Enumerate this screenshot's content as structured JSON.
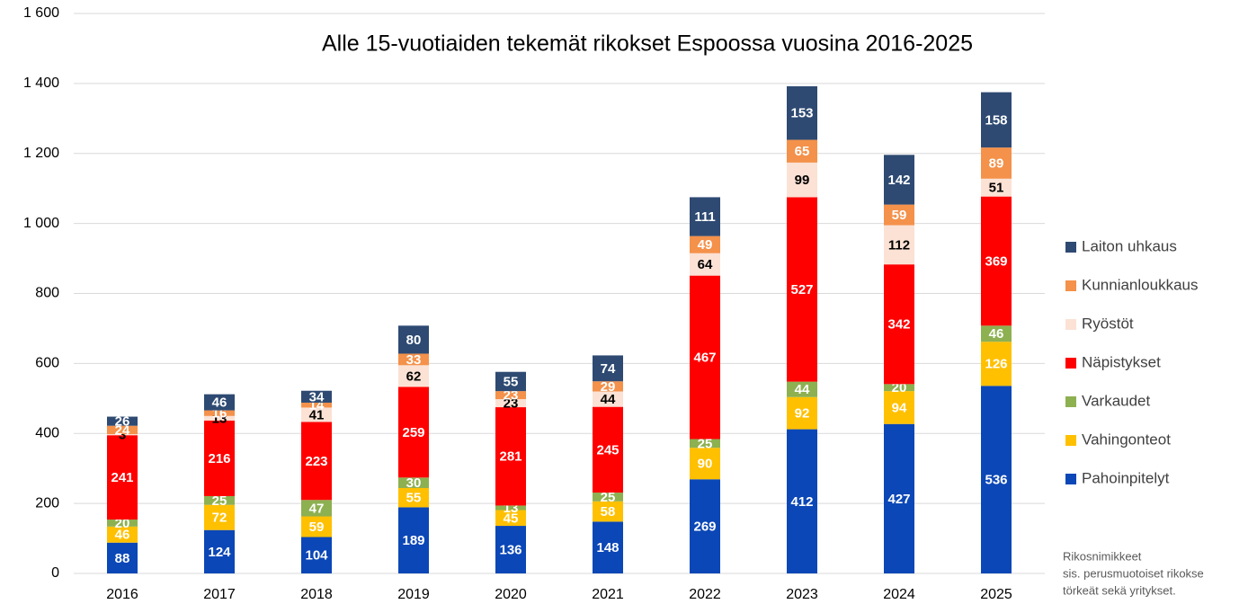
{
  "chart_data": {
    "type": "stacked_bar",
    "title": "Alle 15-vuotiaiden tekemät rikokset Espoossa vuosina 2016-2025",
    "categories": [
      "2016",
      "2017",
      "2018",
      "2019",
      "2020",
      "2021",
      "2022",
      "2023",
      "2024",
      "2025"
    ],
    "series": [
      {
        "name": "Pahoinpitelyt",
        "color": "#0b47b6",
        "label_color": "#ffffff",
        "values": [
          88,
          124,
          104,
          189,
          136,
          148,
          269,
          412,
          427,
          536
        ]
      },
      {
        "name": "Vahingonteot",
        "color": "#ffc000",
        "label_color": "#ffffff",
        "values": [
          46,
          72,
          59,
          55,
          45,
          58,
          90,
          92,
          94,
          126
        ]
      },
      {
        "name": "Varkaudet",
        "color": "#8db051",
        "label_color": "#ffffff",
        "values": [
          20,
          25,
          47,
          30,
          13,
          25,
          25,
          44,
          20,
          46
        ]
      },
      {
        "name": "Näpistykset",
        "color": "#ff0000",
        "label_color": "#ffffff",
        "values": [
          241,
          216,
          223,
          259,
          281,
          245,
          467,
          527,
          342,
          369
        ]
      },
      {
        "name": "Ryöstöt",
        "color": "#fbe2d5",
        "label_color": "#000000",
        "values": [
          3,
          13,
          41,
          62,
          23,
          44,
          64,
          99,
          112,
          51
        ]
      },
      {
        "name": "Kunnianloukkaus",
        "color": "#f4914a",
        "label_color": "#ffffff",
        "values": [
          24,
          16,
          14,
          33,
          23,
          29,
          49,
          65,
          59,
          89
        ]
      },
      {
        "name": "Laiton uhkaus",
        "color": "#2e4a72",
        "label_color": "#ffffff",
        "values": [
          26,
          46,
          34,
          80,
          55,
          74,
          111,
          153,
          142,
          158
        ]
      }
    ],
    "ylim": [
      0,
      1600
    ],
    "yticks": [
      0,
      200,
      400,
      600,
      800,
      {
        "value": 1000,
        "label": "1 000"
      },
      {
        "value": 1200,
        "label": "1 200"
      },
      {
        "value": 1400,
        "label": "1 400"
      },
      {
        "value": 1600,
        "label": "1 600"
      }
    ],
    "grid": true,
    "legend": "right",
    "notes": [
      "Rikosnimikkeet",
      "sis. perusmuotoiset  rikokse",
      "törkeät sekä yritykset."
    ]
  }
}
